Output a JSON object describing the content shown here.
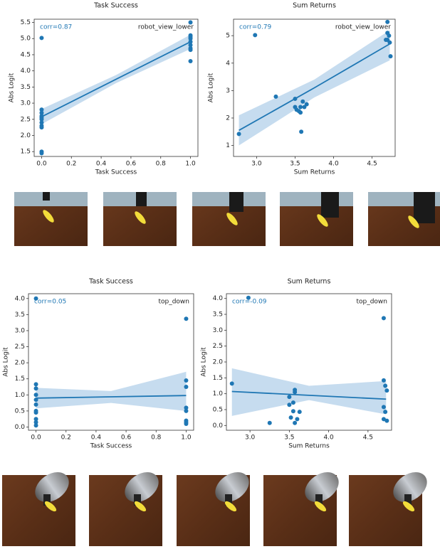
{
  "chart_data": [
    {
      "type": "scatter",
      "title": "Task Success",
      "xlabel": "Task Success",
      "ylabel": "Abs Logit",
      "corr_text": "corr=0.87",
      "view_label": "robot_view_lower",
      "color": "#1f77b4",
      "band_color": "#c6dcef",
      "x": [
        0,
        0,
        0,
        0,
        0,
        0,
        0,
        0,
        0,
        0,
        0,
        1,
        1,
        1,
        1,
        1,
        1,
        1,
        1,
        1
      ],
      "y": [
        5.02,
        2.8,
        2.7,
        2.6,
        2.55,
        2.5,
        2.4,
        2.3,
        2.25,
        1.5,
        1.45,
        5.5,
        5.1,
        5.05,
        5.0,
        4.9,
        4.8,
        4.7,
        4.65,
        4.3
      ],
      "fit": {
        "x": [
          0,
          0.5,
          1
        ],
        "y": [
          2.58,
          3.74,
          4.9
        ],
        "lower": [
          2.35,
          3.62,
          4.68
        ],
        "upper": [
          2.82,
          3.87,
          5.12
        ]
      },
      "xlim": [
        -0.05,
        1.05
      ],
      "ylim": [
        1.35,
        5.6
      ],
      "xticks": [
        {
          "value": 0,
          "label": "0.0"
        },
        {
          "value": 0.2,
          "label": "0.2"
        },
        {
          "value": 0.4,
          "label": "0.4"
        },
        {
          "value": 0.6,
          "label": "0.6"
        },
        {
          "value": 0.8,
          "label": "0.8"
        },
        {
          "value": 1,
          "label": "1.0"
        }
      ],
      "yticks": [
        1.5,
        {
          "value": 2,
          "label": "2.0"
        },
        2.5,
        {
          "value": 3,
          "label": "3.0"
        },
        3.5,
        {
          "value": 4,
          "label": "4.0"
        },
        4.5,
        {
          "value": 5,
          "label": "5.0"
        },
        5.5
      ]
    },
    {
      "type": "scatter",
      "title": "Sum Returns",
      "xlabel": "Sum Returns",
      "ylabel": "Abs Logit",
      "corr_text": "corr=0.79",
      "view_label": "robot_view_lower",
      "color": "#1f77b4",
      "band_color": "#c6dcef",
      "x": [
        2.77,
        2.98,
        3.25,
        3.5,
        3.5,
        3.52,
        3.55,
        3.57,
        3.58,
        3.6,
        3.62,
        3.65,
        3.57,
        4.7,
        4.7,
        4.72,
        4.7,
        4.73,
        4.68,
        4.74
      ],
      "y": [
        1.42,
        5.02,
        2.78,
        2.7,
        2.4,
        2.3,
        2.25,
        2.4,
        1.5,
        2.6,
        2.4,
        2.5,
        2.2,
        5.5,
        5.1,
        5.0,
        4.85,
        4.75,
        4.85,
        4.25
      ],
      "fit": {
        "x": [
          2.77,
          3.75,
          4.73
        ],
        "y": [
          1.55,
          3.1,
          4.7
        ],
        "lower": [
          1.0,
          2.75,
          4.1
        ],
        "upper": [
          2.1,
          3.4,
          5.2
        ]
      },
      "xlim": [
        2.7,
        4.8
      ],
      "ylim": [
        0.6,
        5.6
      ],
      "xticks": [
        {
          "value": 3,
          "label": "3.0"
        },
        3.5,
        {
          "value": 4,
          "label": "4.0"
        },
        4.5
      ],
      "yticks": [
        1,
        2,
        3,
        4,
        5
      ]
    },
    {
      "type": "scatter",
      "title": "Task Success",
      "xlabel": "Task Success",
      "ylabel": "Abs Logit",
      "corr_text": "corr=0.05",
      "view_label": "top_down",
      "color": "#1f77b4",
      "band_color": "#c6dcef",
      "x": [
        0,
        0,
        0,
        0,
        0,
        0,
        0,
        0,
        0,
        0,
        0,
        1,
        1,
        1,
        1,
        1,
        1,
        1,
        1
      ],
      "y": [
        4.0,
        1.33,
        1.2,
        1.0,
        0.85,
        0.7,
        0.5,
        0.45,
        0.25,
        0.15,
        0.05,
        3.37,
        1.45,
        1.25,
        0.6,
        0.5,
        0.2,
        0.15,
        0.1
      ],
      "fit": {
        "x": [
          0,
          0.5,
          1
        ],
        "y": [
          0.9,
          0.94,
          0.98
        ],
        "lower": [
          0.58,
          0.75,
          0.5
        ],
        "upper": [
          1.22,
          1.12,
          1.72
        ]
      },
      "xlim": [
        -0.05,
        1.05
      ],
      "ylim": [
        -0.1,
        4.15
      ],
      "xticks": [
        {
          "value": 0,
          "label": "0.0"
        },
        {
          "value": 0.2,
          "label": "0.2"
        },
        {
          "value": 0.4,
          "label": "0.4"
        },
        {
          "value": 0.6,
          "label": "0.6"
        },
        {
          "value": 0.8,
          "label": "0.8"
        },
        {
          "value": 1,
          "label": "1.0"
        }
      ],
      "yticks": [
        {
          "value": 0,
          "label": "0.0"
        },
        0.5,
        {
          "value": 1,
          "label": "1.0"
        },
        1.5,
        {
          "value": 2,
          "label": "2.0"
        },
        2.5,
        {
          "value": 3,
          "label": "3.0"
        },
        3.5,
        {
          "value": 4,
          "label": "4.0"
        }
      ]
    },
    {
      "type": "scatter",
      "title": "Sum Returns",
      "xlabel": "Sum Returns",
      "ylabel": "Abs Logit",
      "corr_text": "corr=-0.09",
      "view_label": "top_down",
      "color": "#1f77b4",
      "band_color": "#c6dcef",
      "x": [
        2.77,
        2.98,
        3.25,
        3.5,
        3.5,
        3.52,
        3.55,
        3.57,
        3.57,
        3.55,
        3.57,
        3.6,
        3.63,
        4.7,
        4.7,
        4.72,
        4.74,
        4.7,
        4.72,
        4.7,
        4.74
      ],
      "y": [
        1.32,
        4.02,
        0.08,
        0.9,
        0.65,
        0.25,
        0.72,
        1.12,
        1.05,
        0.45,
        0.08,
        0.2,
        0.43,
        3.38,
        1.42,
        1.25,
        1.1,
        0.58,
        0.43,
        0.2,
        0.15
      ],
      "fit": {
        "x": [
          2.77,
          3.75,
          4.73
        ],
        "y": [
          1.07,
          0.95,
          0.83
        ],
        "lower": [
          0.3,
          0.8,
          0.35
        ],
        "upper": [
          1.8,
          1.25,
          1.4
        ]
      },
      "xlim": [
        2.7,
        4.8
      ],
      "ylim": [
        -0.15,
        4.15
      ],
      "xticks": [
        {
          "value": 3,
          "label": "3.0"
        },
        3.5,
        {
          "value": 4,
          "label": "4.0"
        },
        4.5
      ],
      "yticks": [
        {
          "value": 0,
          "label": "0.0"
        },
        0.5,
        {
          "value": 1,
          "label": "1.0"
        },
        1.5,
        {
          "value": 2,
          "label": "2.0"
        },
        2.5,
        {
          "value": 3,
          "label": "3.0"
        },
        3.5,
        {
          "value": 4,
          "label": "4.0"
        }
      ]
    }
  ]
}
